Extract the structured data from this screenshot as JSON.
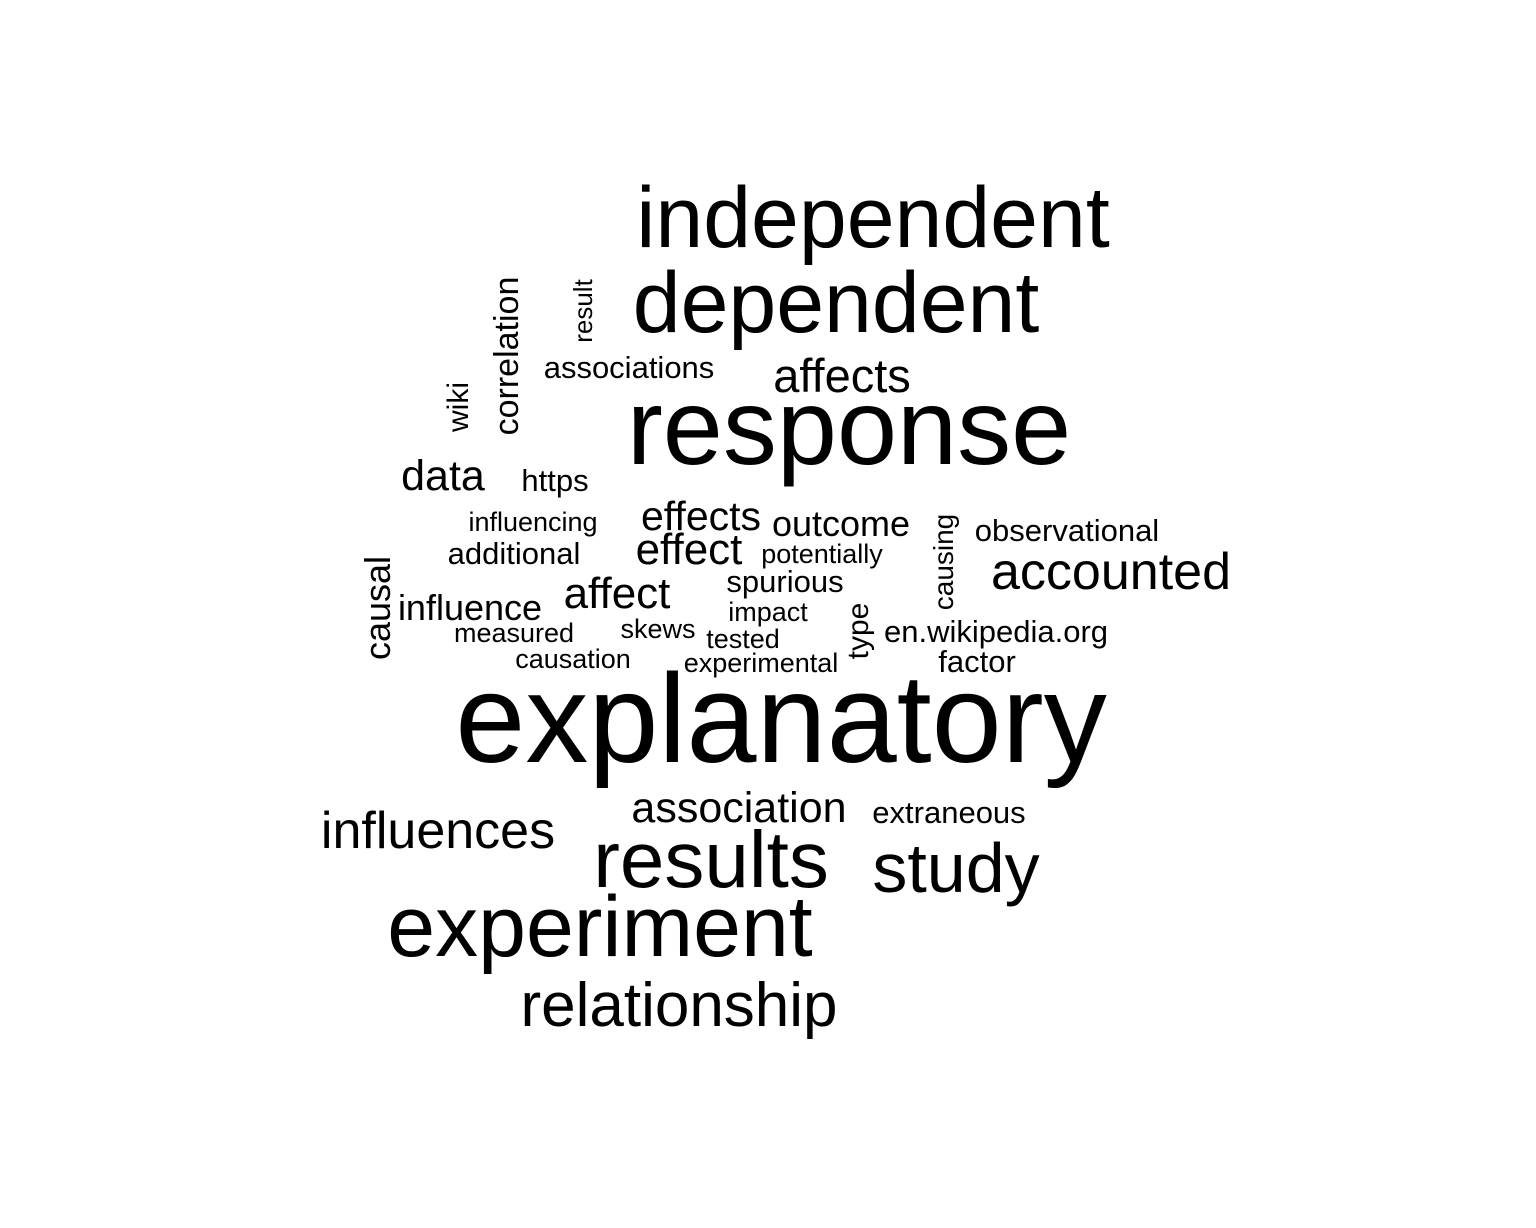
{
  "text_color": "#000000",
  "background_color": "#ffffff",
  "words": [
    {
      "text": "explanatory",
      "orientation": "horizontal"
    },
    {
      "text": "response",
      "orientation": "horizontal"
    },
    {
      "text": "independent",
      "orientation": "horizontal"
    },
    {
      "text": "dependent",
      "orientation": "horizontal"
    },
    {
      "text": "experiment",
      "orientation": "horizontal"
    },
    {
      "text": "results",
      "orientation": "horizontal"
    },
    {
      "text": "study",
      "orientation": "horizontal"
    },
    {
      "text": "relationship",
      "orientation": "horizontal"
    },
    {
      "text": "influences",
      "orientation": "horizontal"
    },
    {
      "text": "association",
      "orientation": "horizontal"
    },
    {
      "text": "accounted",
      "orientation": "horizontal"
    },
    {
      "text": "affects",
      "orientation": "horizontal"
    },
    {
      "text": "affect",
      "orientation": "horizontal"
    },
    {
      "text": "effect",
      "orientation": "horizontal"
    },
    {
      "text": "effects",
      "orientation": "horizontal"
    },
    {
      "text": "data",
      "orientation": "horizontal"
    },
    {
      "text": "outcome",
      "orientation": "horizontal"
    },
    {
      "text": "influence",
      "orientation": "horizontal"
    },
    {
      "text": "correlation",
      "orientation": "vertical"
    },
    {
      "text": "causal",
      "orientation": "vertical"
    },
    {
      "text": "observational",
      "orientation": "horizontal"
    },
    {
      "text": "associations",
      "orientation": "horizontal"
    },
    {
      "text": "additional",
      "orientation": "horizontal"
    },
    {
      "text": "spurious",
      "orientation": "horizontal"
    },
    {
      "text": "en.wikipedia.org",
      "orientation": "horizontal"
    },
    {
      "text": "factor",
      "orientation": "horizontal"
    },
    {
      "text": "extraneous",
      "orientation": "horizontal"
    },
    {
      "text": "https",
      "orientation": "horizontal"
    },
    {
      "text": "wiki",
      "orientation": "vertical"
    },
    {
      "text": "type",
      "orientation": "vertical"
    },
    {
      "text": "influencing",
      "orientation": "horizontal"
    },
    {
      "text": "potentially",
      "orientation": "horizontal"
    },
    {
      "text": "causing",
      "orientation": "vertical"
    },
    {
      "text": "impact",
      "orientation": "horizontal"
    },
    {
      "text": "measured",
      "orientation": "horizontal"
    },
    {
      "text": "skews",
      "orientation": "horizontal"
    },
    {
      "text": "tested",
      "orientation": "horizontal"
    },
    {
      "text": "causation",
      "orientation": "horizontal"
    },
    {
      "text": "experimental",
      "orientation": "horizontal"
    },
    {
      "text": "result",
      "orientation": "vertical"
    }
  ]
}
